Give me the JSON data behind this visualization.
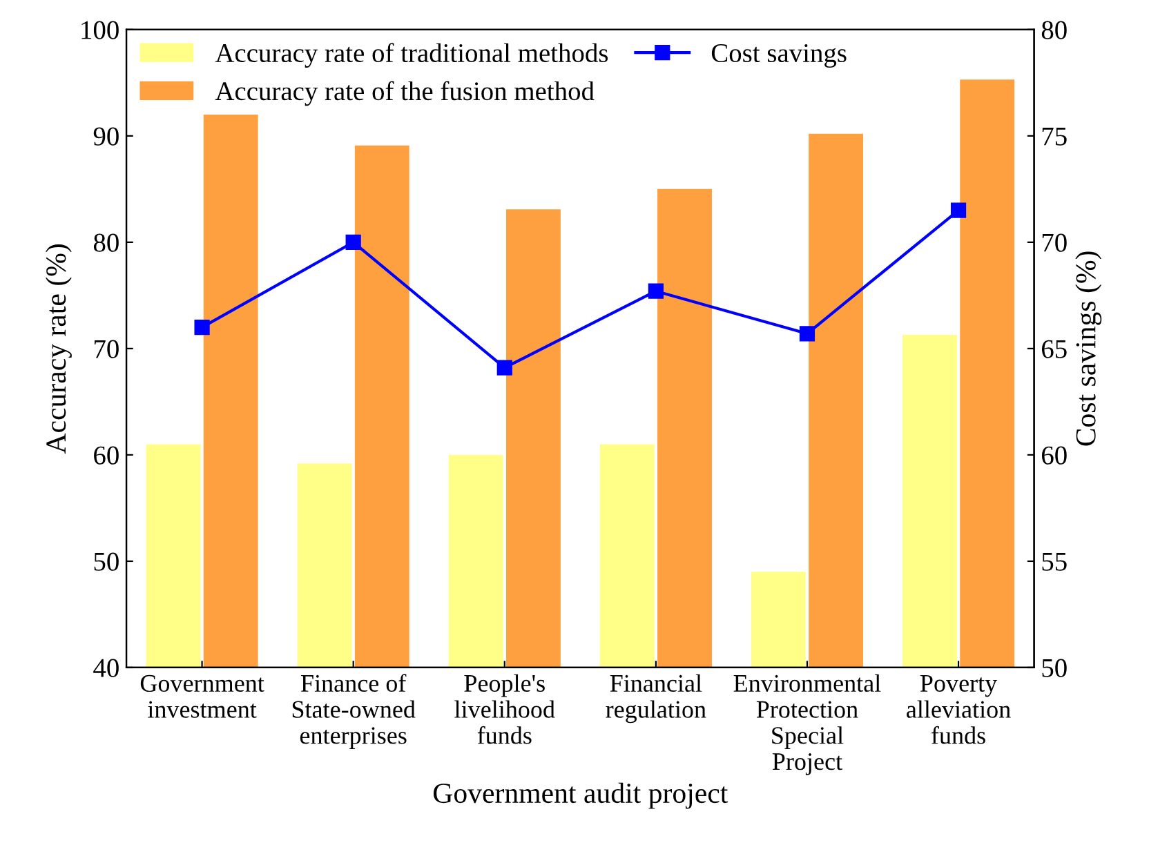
{
  "chart_data": {
    "type": "bar",
    "xlabel": "Government audit project",
    "ylabel": "Accuracy rate (%)",
    "y2label": "Cost savings (%)",
    "categories": [
      "Government\ninvestment",
      "Finance of\nState-owned\nenterprises",
      "People's\nlivelihood\nfunds",
      "Financial\nregulation",
      "Environmental\nProtection\nSpecial\nProject",
      "Poverty\nalleviation\nfunds"
    ],
    "series": [
      {
        "name": "Accuracy rate of traditional methods",
        "color": "#ffff88",
        "values": [
          61,
          59.2,
          60,
          61,
          49,
          71.3
        ]
      },
      {
        "name": "Accuracy rate of the fusion method",
        "color": "#ffa040",
        "values": [
          92,
          89.1,
          83.1,
          85,
          90.2,
          95.3
        ]
      },
      {
        "name": "Cost savings",
        "type": "line",
        "axis": "y2",
        "color": "#0000ff",
        "marker": "square",
        "values": [
          66,
          70,
          64.1,
          67.7,
          65.7,
          71.5
        ]
      }
    ],
    "ylim": [
      40,
      100
    ],
    "yticks": [
      40,
      50,
      60,
      70,
      80,
      90,
      100
    ],
    "y2lim": [
      50,
      80
    ],
    "y2ticks": [
      50,
      55,
      60,
      65,
      70,
      75,
      80
    ],
    "legend": "top left",
    "grid": false
  }
}
